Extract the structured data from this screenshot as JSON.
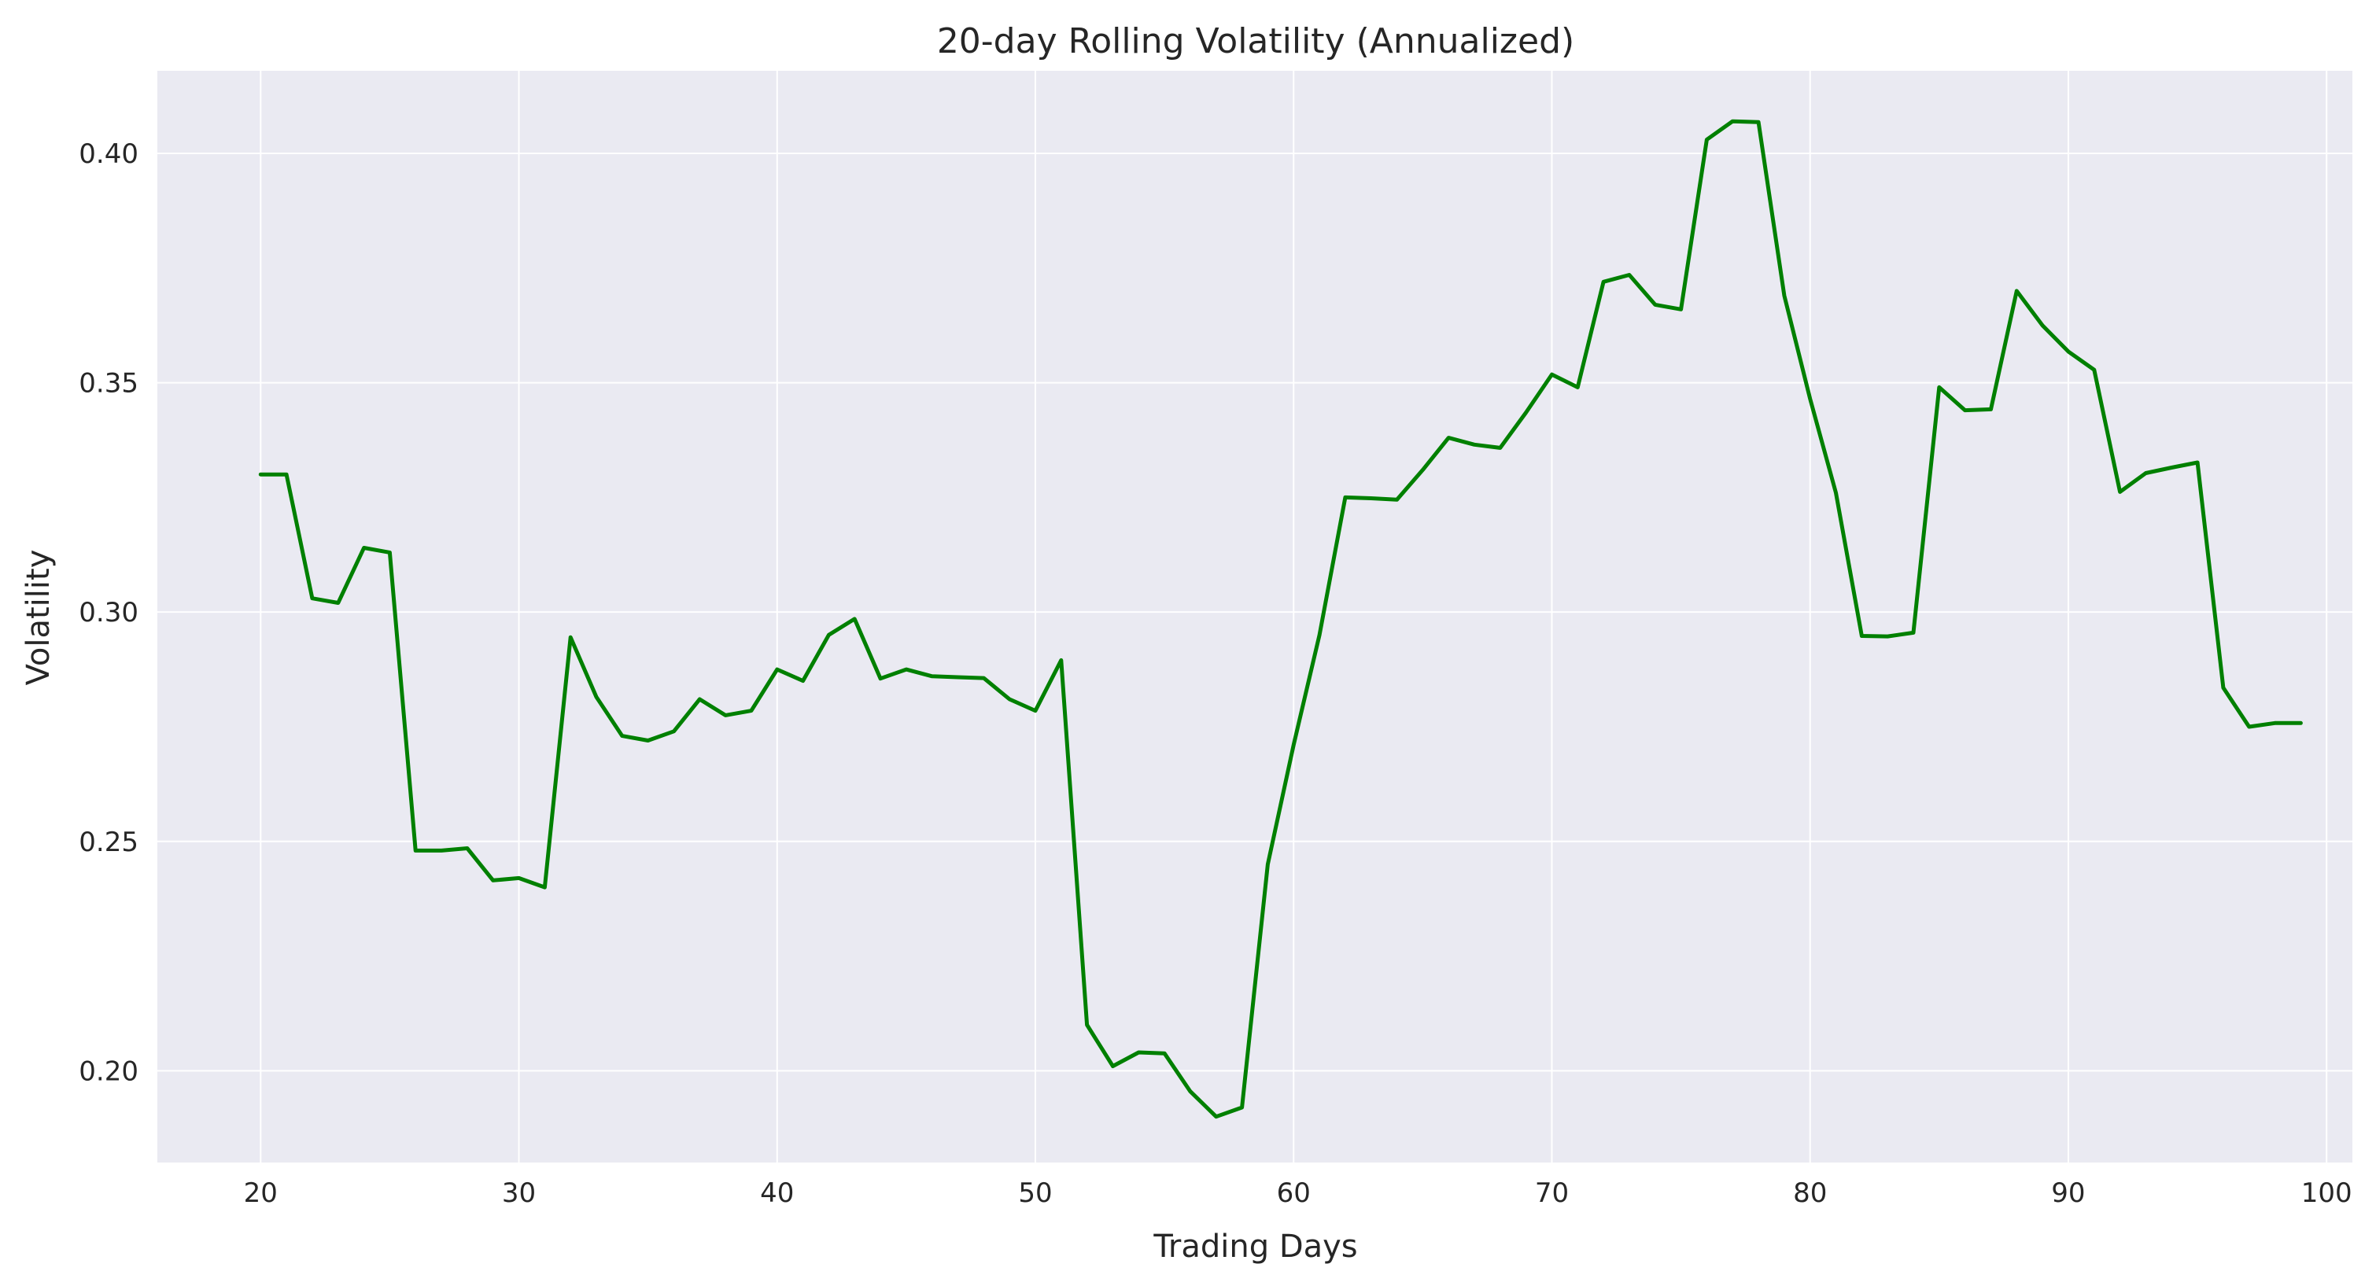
{
  "chart_data": {
    "type": "line",
    "title": "20-day Rolling Volatility (Annualized)",
    "xlabel": "Trading Days",
    "ylabel": "Volatility",
    "xlim": [
      16,
      101
    ],
    "ylim": [
      0.18,
      0.418
    ],
    "x_ticks": [
      20,
      30,
      40,
      50,
      60,
      70,
      80,
      90,
      100
    ],
    "y_ticks": [
      0.2,
      0.25,
      0.3,
      0.35,
      0.4
    ],
    "x_tick_labels": [
      "20",
      "30",
      "40",
      "50",
      "60",
      "70",
      "80",
      "90",
      "100"
    ],
    "y_tick_labels": [
      "0.20",
      "0.25",
      "0.30",
      "0.35",
      "0.40"
    ],
    "grid": true,
    "line_color": "#008000",
    "background_color": "#eaeaf2",
    "series": [
      {
        "x": [
          20,
          21,
          22,
          23,
          24,
          25,
          26,
          27,
          28,
          29,
          30,
          31,
          32,
          33,
          34,
          35,
          36,
          37,
          38,
          39,
          40,
          41,
          42,
          43,
          44,
          45,
          46,
          47,
          48,
          49,
          50,
          51,
          52,
          53,
          54,
          55,
          56,
          57,
          58,
          59,
          60,
          61,
          62,
          63,
          64,
          65,
          66,
          67,
          68,
          69,
          70,
          71,
          72,
          73,
          74,
          75,
          76,
          77,
          78,
          79,
          80,
          81,
          82,
          83,
          84,
          85,
          86,
          87,
          88,
          89,
          90,
          91,
          92,
          93,
          94,
          95,
          96,
          97,
          98,
          99
        ],
        "values": [
          0.33,
          0.33,
          0.303,
          0.302,
          0.314,
          0.313,
          0.248,
          0.248,
          0.2485,
          0.2415,
          0.242,
          0.24,
          0.2945,
          0.2815,
          0.273,
          0.272,
          0.274,
          0.281,
          0.2775,
          0.2785,
          0.2875,
          0.285,
          0.295,
          0.2985,
          0.2855,
          0.2875,
          0.286,
          0.2858,
          0.2856,
          0.281,
          0.2785,
          0.2895,
          0.21,
          0.201,
          0.204,
          0.2038,
          0.1955,
          0.19,
          0.192,
          0.245,
          0.271,
          0.295,
          0.325,
          0.3248,
          0.3245,
          0.331,
          0.338,
          0.3365,
          0.3358,
          0.3435,
          0.3518,
          0.349,
          0.372,
          0.3735,
          0.367,
          0.366,
          0.403,
          0.407,
          0.4068,
          0.369,
          0.3465,
          0.326,
          0.2948,
          0.2947,
          0.2955,
          0.349,
          0.344,
          0.3442,
          0.37,
          0.3625,
          0.3568,
          0.3528,
          0.3262,
          0.3303,
          0.3315,
          0.3326,
          0.2835,
          0.275,
          0.2758,
          0.2758
        ]
      }
    ]
  }
}
